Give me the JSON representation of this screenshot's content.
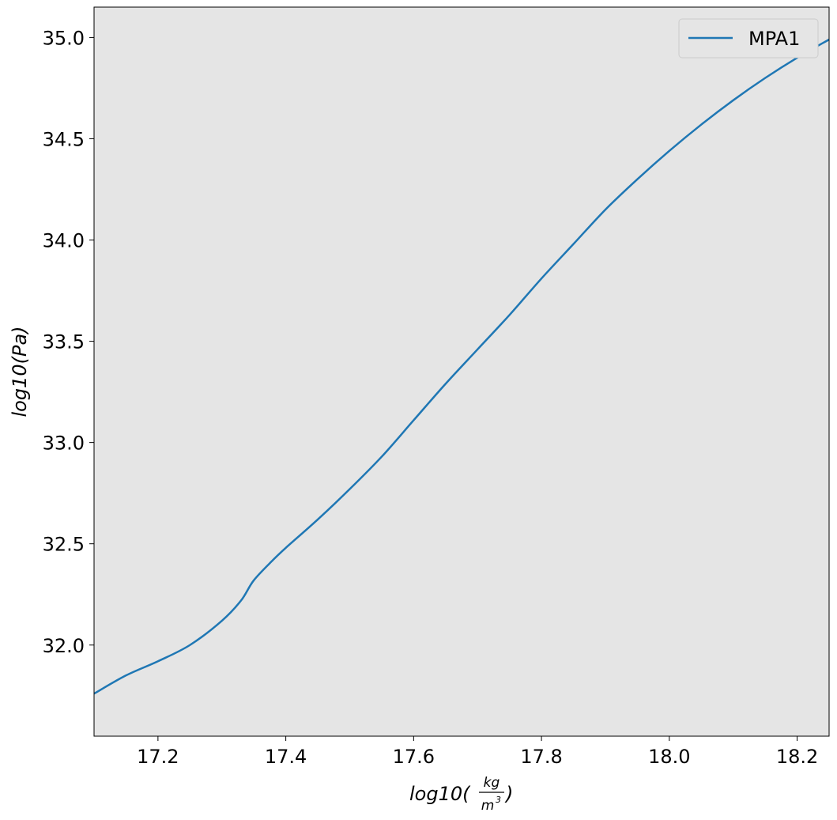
{
  "chart_data": {
    "type": "line",
    "xlabel": "log10(kg/m³)",
    "xlabel_parts": {
      "prefix": "log10(",
      "numerator": "kg",
      "denominator": "m",
      "exponent": "3",
      "suffix": ")"
    },
    "ylabel": "log10(Pa)",
    "xlim": [
      17.1,
      18.25
    ],
    "ylim": [
      31.55,
      35.15
    ],
    "x_ticks": [
      17.2,
      17.4,
      17.6,
      17.8,
      18.0,
      18.2
    ],
    "x_tick_labels": [
      "17.2",
      "17.4",
      "17.6",
      "17.8",
      "18.0",
      "18.2"
    ],
    "y_ticks": [
      32.0,
      32.5,
      33.0,
      33.5,
      34.0,
      34.5,
      35.0
    ],
    "y_tick_labels": [
      "32.0",
      "32.5",
      "33.0",
      "33.5",
      "34.0",
      "34.5",
      "35.0"
    ],
    "grid": false,
    "background": "#e5e5e5",
    "legend_position": "top-right",
    "series": [
      {
        "name": "MPA1",
        "color": "#1f77b4",
        "points": [
          [
            17.1,
            31.76
          ],
          [
            17.15,
            31.85
          ],
          [
            17.2,
            31.92
          ],
          [
            17.25,
            32.0
          ],
          [
            17.3,
            32.12
          ],
          [
            17.33,
            32.22
          ],
          [
            17.35,
            32.32
          ],
          [
            17.38,
            32.42
          ],
          [
            17.4,
            32.48
          ],
          [
            17.45,
            32.62
          ],
          [
            17.5,
            32.77
          ],
          [
            17.55,
            32.93
          ],
          [
            17.6,
            33.11
          ],
          [
            17.65,
            33.29
          ],
          [
            17.7,
            33.46
          ],
          [
            17.75,
            33.63
          ],
          [
            17.8,
            33.81
          ],
          [
            17.85,
            33.98
          ],
          [
            17.9,
            34.15
          ],
          [
            17.95,
            34.3
          ],
          [
            18.0,
            34.44
          ],
          [
            18.05,
            34.57
          ],
          [
            18.1,
            34.69
          ],
          [
            18.15,
            34.8
          ],
          [
            18.2,
            34.9
          ],
          [
            18.25,
            34.99
          ]
        ]
      }
    ]
  }
}
